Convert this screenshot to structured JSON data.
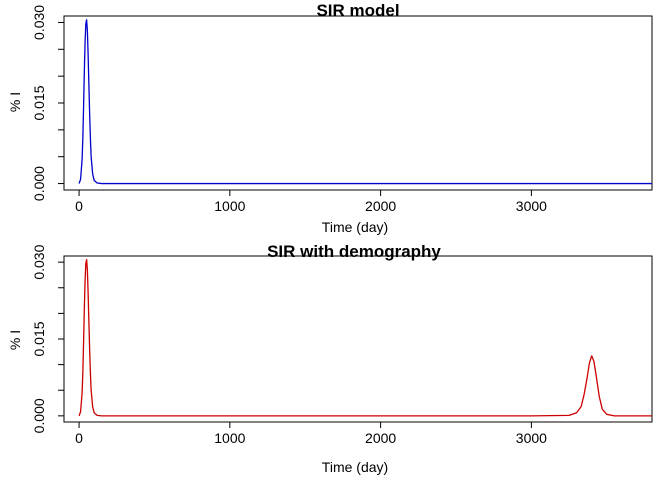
{
  "chart_data": [
    {
      "type": "line",
      "title": "SIR model",
      "xlabel": "Time (day)",
      "ylabel": "% I",
      "xlim": [
        -100,
        3800
      ],
      "ylim": [
        -0.0012,
        0.0312
      ],
      "x_ticks": [
        "0",
        "1000",
        "2000",
        "3000"
      ],
      "y_ticks": [
        "0.000",
        "0.015",
        "0.030"
      ],
      "grid": false,
      "series": [
        {
          "color": "#0000cc",
          "x": [
            0,
            10,
            20,
            25,
            30,
            35,
            40,
            45,
            50,
            55,
            60,
            65,
            70,
            75,
            80,
            90,
            100,
            120,
            150,
            200,
            500,
            1000,
            2000,
            3000,
            3800
          ],
          "y": [
            0.0,
            0.0008,
            0.0045,
            0.0085,
            0.0145,
            0.021,
            0.0265,
            0.0298,
            0.0305,
            0.0285,
            0.024,
            0.0185,
            0.013,
            0.0085,
            0.005,
            0.0018,
            0.0006,
            0.0001,
            0.0,
            0.0,
            0.0,
            0.0,
            0.0,
            0.0,
            0.0
          ]
        }
      ]
    },
    {
      "type": "line",
      "title": "SIR with demography",
      "xlabel": "Time (day)",
      "ylabel": "% I",
      "xlim": [
        -100,
        3800
      ],
      "ylim": [
        -0.0012,
        0.0312
      ],
      "x_ticks": [
        "0",
        "1000",
        "2000",
        "3000"
      ],
      "y_ticks": [
        "0.000",
        "0.015",
        "0.030"
      ],
      "grid": false,
      "series": [
        {
          "color": "#cc0000",
          "x": [
            0,
            10,
            20,
            25,
            30,
            35,
            40,
            45,
            50,
            55,
            60,
            65,
            70,
            75,
            80,
            90,
            100,
            120,
            150,
            200,
            1000,
            2000,
            3000,
            3250,
            3300,
            3330,
            3350,
            3370,
            3385,
            3400,
            3415,
            3430,
            3450,
            3470,
            3500,
            3550,
            3600,
            3800
          ],
          "y": [
            0.0,
            0.0008,
            0.0045,
            0.0085,
            0.0145,
            0.021,
            0.0265,
            0.0298,
            0.0305,
            0.0285,
            0.024,
            0.0185,
            0.013,
            0.0085,
            0.005,
            0.0018,
            0.0006,
            0.0001,
            0.0,
            0.0,
            0.0,
            0.0,
            0.0,
            0.0001,
            0.0006,
            0.0018,
            0.0042,
            0.0075,
            0.0103,
            0.0117,
            0.0106,
            0.0078,
            0.0038,
            0.0013,
            0.0003,
            0.0,
            0.0,
            0.0
          ]
        }
      ]
    }
  ]
}
